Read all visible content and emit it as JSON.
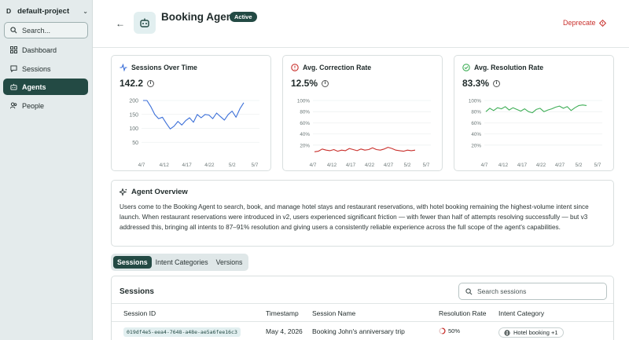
{
  "sidebar": {
    "project_letter": "D",
    "project_name": "default-project",
    "search_placeholder": "Search...",
    "items": [
      {
        "label": "Dashboard",
        "icon": "dashboard-icon"
      },
      {
        "label": "Sessions",
        "icon": "chat-icon"
      },
      {
        "label": "Agents",
        "icon": "robot-icon",
        "active": true
      },
      {
        "label": "People",
        "icon": "people-icon"
      }
    ]
  },
  "header": {
    "title": "Booking Agent",
    "badge": "Active",
    "deprecate_label": "Deprecate"
  },
  "cards": [
    {
      "title": "Sessions Over Time",
      "value": "142.2",
      "color": "#3b6fd8",
      "y_ticks": [
        "200",
        "150",
        "100",
        "50"
      ],
      "x_ticks": [
        "4/7",
        "4/12",
        "4/17",
        "4/22",
        "5/2",
        "5/7"
      ],
      "series": [
        200,
        200,
        178,
        150,
        135,
        140,
        118,
        98,
        108,
        125,
        112,
        128,
        138,
        122,
        150,
        138,
        150,
        148,
        135,
        155,
        142,
        130,
        150,
        162,
        140,
        170,
        192
      ]
    },
    {
      "title": "Avg. Correction Rate",
      "value": "12.5%",
      "color": "#c9302c",
      "y_ticks": [
        "100%",
        "80%",
        "60%",
        "40%",
        "20%"
      ],
      "x_ticks": [
        "4/7",
        "4/12",
        "4/17",
        "4/22",
        "4/27",
        "5/2",
        "5/7"
      ],
      "series": [
        8,
        9,
        13,
        11,
        10,
        12,
        9,
        11,
        10,
        14,
        12,
        10,
        13,
        11,
        12,
        15,
        12,
        11,
        13,
        16,
        14,
        11,
        10,
        9,
        11,
        10,
        11
      ]
    },
    {
      "title": "Avg. Resolution Rate",
      "value": "83.3%",
      "color": "#3fae57",
      "y_ticks": [
        "100%",
        "80%",
        "60%",
        "40%",
        "20%"
      ],
      "x_ticks": [
        "4/7",
        "4/12",
        "4/17",
        "4/22",
        "4/27",
        "5/2",
        "5/7"
      ],
      "series": [
        80,
        86,
        82,
        87,
        85,
        89,
        83,
        87,
        84,
        81,
        85,
        80,
        78,
        84,
        86,
        80,
        83,
        85,
        88,
        90,
        86,
        89,
        82,
        87,
        91,
        92,
        91
      ]
    }
  ],
  "overview": {
    "title": "Agent Overview",
    "text": "Users come to the Booking Agent to search, book, and manage hotel stays and restaurant reservations, with hotel booking remaining the highest-volume intent since launch. When restaurant reservations were introduced in v2, users experienced significant friction — with fewer than half of attempts resolving successfully — but v3 addressed this, bringing all intents to 87–91% resolution and giving users a consistently reliable experience across the full scope of the agent's capabilities."
  },
  "tabs": [
    "Sessions",
    "Intent Categories",
    "Versions"
  ],
  "sessions": {
    "title": "Sessions",
    "search_placeholder": "Search sessions",
    "columns": [
      "Session ID",
      "Timestamp",
      "Session Name",
      "Resolution Rate",
      "Intent Category"
    ],
    "rows": [
      {
        "id": "019df4e5-eea4-7648-a48e-ae5a6fee16c3",
        "timestamp": "May 4, 2026",
        "name": "Booking John's anniversary trip",
        "resolution": "50%",
        "intent": "Hotel booking +1"
      }
    ]
  }
}
